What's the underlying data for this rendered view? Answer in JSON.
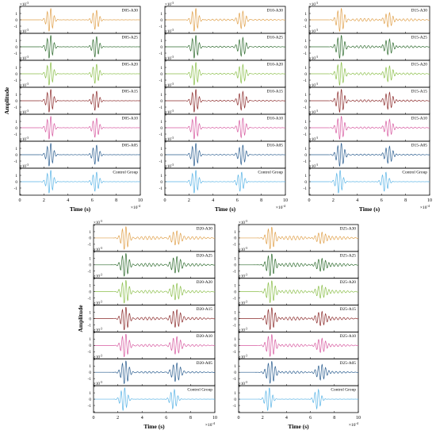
{
  "figure": {
    "ylabel": "Amplitude",
    "xlabel": "Time (s)",
    "x_exponent": "×10",
    "x_exponent_power": "-4",
    "y_exponent": "×10",
    "y_exponent_power": "-3"
  },
  "chart_data": [
    {
      "type": "line",
      "id": "D05",
      "xlim": [
        0,
        10
      ],
      "x_ticks": [
        "0",
        "2",
        "4",
        "6",
        "8",
        "10"
      ],
      "ylim": [
        -2,
        2
      ],
      "y_ticks": [
        "2",
        "1",
        "0",
        "-1",
        "-2"
      ],
      "xlabel": "Time (s)",
      "ylabel": "Amplitude",
      "series": [
        {
          "name": "D05-A30",
          "color": "#e0a04a",
          "packets": [
            {
              "center": 2.5,
              "amp": 1.9,
              "width": 0.35
            },
            {
              "center": 6.3,
              "amp": 1.6,
              "width": 0.35
            }
          ],
          "ripple": 0.03
        },
        {
          "name": "D05-A25",
          "color": "#2e6b2e",
          "packets": [
            {
              "center": 2.5,
              "amp": 1.9,
              "width": 0.35
            },
            {
              "center": 6.3,
              "amp": 1.7,
              "width": 0.35
            }
          ],
          "ripple": 0.03
        },
        {
          "name": "D05-A20",
          "color": "#8bbf4a",
          "packets": [
            {
              "center": 2.5,
              "amp": 1.9,
              "width": 0.35
            },
            {
              "center": 6.3,
              "amp": 1.6,
              "width": 0.35
            }
          ],
          "ripple": 0.03
        },
        {
          "name": "D05-A15",
          "color": "#8b2a2a",
          "packets": [
            {
              "center": 2.5,
              "amp": 1.9,
              "width": 0.35
            },
            {
              "center": 6.3,
              "amp": 1.6,
              "width": 0.35
            }
          ],
          "ripple": 0.03
        },
        {
          "name": "D05-A10",
          "color": "#d75aa0",
          "packets": [
            {
              "center": 2.5,
              "amp": 1.9,
              "width": 0.35
            },
            {
              "center": 6.3,
              "amp": 1.6,
              "width": 0.35
            }
          ],
          "ripple": 0.03
        },
        {
          "name": "D05-A05",
          "color": "#2a5d8f",
          "packets": [
            {
              "center": 2.5,
              "amp": 1.9,
              "width": 0.35
            },
            {
              "center": 6.3,
              "amp": 1.6,
              "width": 0.35
            }
          ],
          "ripple": 0.03
        },
        {
          "name": "Control Group",
          "color": "#5ab4e6",
          "packets": [
            {
              "center": 2.5,
              "amp": 1.9,
              "width": 0.35
            },
            {
              "center": 6.3,
              "amp": 1.6,
              "width": 0.35
            }
          ],
          "ripple": 0.03
        }
      ]
    },
    {
      "type": "line",
      "id": "D10",
      "xlim": [
        0,
        10
      ],
      "x_ticks": [
        "0",
        "2",
        "4",
        "6",
        "8",
        "10"
      ],
      "ylim": [
        -2,
        2
      ],
      "y_ticks": [
        "2",
        "1",
        "0",
        "-1",
        "-2"
      ],
      "xlabel": "Time (s)",
      "ylabel": "",
      "series": [
        {
          "name": "D10-A30",
          "color": "#e0a04a",
          "packets": [
            {
              "center": 2.5,
              "amp": 1.9,
              "width": 0.35
            },
            {
              "center": 6.4,
              "amp": 1.4,
              "width": 0.4
            }
          ],
          "ripple": 0.15
        },
        {
          "name": "D10-A25",
          "color": "#2e6b2e",
          "packets": [
            {
              "center": 2.5,
              "amp": 1.9,
              "width": 0.35
            },
            {
              "center": 6.4,
              "amp": 1.5,
              "width": 0.4
            }
          ],
          "ripple": 0.12
        },
        {
          "name": "D10-A20",
          "color": "#8bbf4a",
          "packets": [
            {
              "center": 2.5,
              "amp": 1.9,
              "width": 0.35
            },
            {
              "center": 6.4,
              "amp": 1.5,
              "width": 0.4
            }
          ],
          "ripple": 0.1
        },
        {
          "name": "D10-A15",
          "color": "#8b2a2a",
          "packets": [
            {
              "center": 2.5,
              "amp": 1.9,
              "width": 0.35
            },
            {
              "center": 6.4,
              "amp": 1.5,
              "width": 0.4
            }
          ],
          "ripple": 0.1
        },
        {
          "name": "D10-A10",
          "color": "#d75aa0",
          "packets": [
            {
              "center": 2.5,
              "amp": 1.9,
              "width": 0.35
            },
            {
              "center": 6.4,
              "amp": 1.6,
              "width": 0.38
            }
          ],
          "ripple": 0.08
        },
        {
          "name": "D10-A05",
          "color": "#2a5d8f",
          "packets": [
            {
              "center": 2.5,
              "amp": 1.9,
              "width": 0.35
            },
            {
              "center": 6.4,
              "amp": 1.6,
              "width": 0.37
            }
          ],
          "ripple": 0.06
        },
        {
          "name": "Control Group",
          "color": "#5ab4e6",
          "packets": [
            {
              "center": 2.5,
              "amp": 1.9,
              "width": 0.35
            },
            {
              "center": 6.3,
              "amp": 1.6,
              "width": 0.35
            }
          ],
          "ripple": 0.03
        }
      ]
    },
    {
      "type": "line",
      "id": "D15",
      "xlim": [
        0,
        10
      ],
      "x_ticks": [
        "0",
        "2",
        "4",
        "6",
        "8",
        "10"
      ],
      "ylim": [
        -2,
        2
      ],
      "y_ticks": [
        "2",
        "1",
        "0",
        "-1",
        "-2"
      ],
      "xlabel": "Time (s)",
      "ylabel": "",
      "series": [
        {
          "name": "D15-A30",
          "color": "#e0a04a",
          "packets": [
            {
              "center": 2.6,
              "amp": 1.9,
              "width": 0.4
            },
            {
              "center": 6.6,
              "amp": 1.2,
              "width": 0.45
            }
          ],
          "ripple": 0.25
        },
        {
          "name": "D15-A25",
          "color": "#2e6b2e",
          "packets": [
            {
              "center": 2.6,
              "amp": 1.9,
              "width": 0.4
            },
            {
              "center": 6.6,
              "amp": 1.3,
              "width": 0.45
            }
          ],
          "ripple": 0.22
        },
        {
          "name": "D15-A20",
          "color": "#8bbf4a",
          "packets": [
            {
              "center": 2.6,
              "amp": 1.9,
              "width": 0.4
            },
            {
              "center": 6.6,
              "amp": 1.3,
              "width": 0.45
            }
          ],
          "ripple": 0.2
        },
        {
          "name": "D15-A15",
          "color": "#8b2a2a",
          "packets": [
            {
              "center": 2.6,
              "amp": 1.9,
              "width": 0.4
            },
            {
              "center": 6.6,
              "amp": 1.4,
              "width": 0.45
            }
          ],
          "ripple": 0.18
        },
        {
          "name": "D15-A10",
          "color": "#d75aa0",
          "packets": [
            {
              "center": 2.6,
              "amp": 1.9,
              "width": 0.4
            },
            {
              "center": 6.6,
              "amp": 1.4,
              "width": 0.42
            }
          ],
          "ripple": 0.15
        },
        {
          "name": "D15-A05",
          "color": "#2a5d8f",
          "packets": [
            {
              "center": 2.6,
              "amp": 1.9,
              "width": 0.4
            },
            {
              "center": 6.6,
              "amp": 1.4,
              "width": 0.42
            }
          ],
          "ripple": 0.12
        },
        {
          "name": "Control Group",
          "color": "#5ab4e6",
          "packets": [
            {
              "center": 2.5,
              "amp": 1.9,
              "width": 0.35
            },
            {
              "center": 6.3,
              "amp": 1.6,
              "width": 0.35
            }
          ],
          "ripple": 0.03
        }
      ]
    },
    {
      "type": "line",
      "id": "D20",
      "xlim": [
        0,
        10
      ],
      "x_ticks": [
        "0",
        "2",
        "4",
        "6",
        "8",
        "10"
      ],
      "ylim": [
        -2,
        2
      ],
      "y_ticks": [
        "2",
        "1",
        "0",
        "-1",
        "-2"
      ],
      "xlabel": "Time (s)",
      "ylabel": "Amplitude",
      "series": [
        {
          "name": "D20-A30",
          "color": "#e0a04a",
          "packets": [
            {
              "center": 2.6,
              "amp": 1.9,
              "width": 0.4
            },
            {
              "center": 6.8,
              "amp": 1.1,
              "width": 0.5
            }
          ],
          "ripple": 0.3
        },
        {
          "name": "D20-A25",
          "color": "#2e6b2e",
          "packets": [
            {
              "center": 2.6,
              "amp": 1.9,
              "width": 0.4
            },
            {
              "center": 6.8,
              "amp": 1.3,
              "width": 0.5
            }
          ],
          "ripple": 0.28
        },
        {
          "name": "D20-A20",
          "color": "#8bbf4a",
          "packets": [
            {
              "center": 2.6,
              "amp": 1.9,
              "width": 0.4
            },
            {
              "center": 6.8,
              "amp": 1.3,
              "width": 0.5
            }
          ],
          "ripple": 0.25
        },
        {
          "name": "D20-A15",
          "color": "#8b2a2a",
          "packets": [
            {
              "center": 2.6,
              "amp": 1.9,
              "width": 0.4
            },
            {
              "center": 6.8,
              "amp": 1.4,
              "width": 0.5
            }
          ],
          "ripple": 0.25
        },
        {
          "name": "D20-A10",
          "color": "#d75aa0",
          "packets": [
            {
              "center": 2.6,
              "amp": 1.9,
              "width": 0.4
            },
            {
              "center": 6.8,
              "amp": 1.4,
              "width": 0.48
            }
          ],
          "ripple": 0.2
        },
        {
          "name": "D20-A05",
          "color": "#2a5d8f",
          "packets": [
            {
              "center": 2.6,
              "amp": 1.9,
              "width": 0.4
            },
            {
              "center": 6.8,
              "amp": 1.5,
              "width": 0.45
            }
          ],
          "ripple": 0.15
        },
        {
          "name": "Control Group",
          "color": "#5ab4e6",
          "packets": [
            {
              "center": 2.5,
              "amp": 1.9,
              "width": 0.35
            },
            {
              "center": 6.6,
              "amp": 1.6,
              "width": 0.35
            }
          ],
          "ripple": 0.03
        }
      ]
    },
    {
      "type": "line",
      "id": "D25",
      "xlim": [
        0,
        10
      ],
      "x_ticks": [
        "0",
        "2",
        "4",
        "6",
        "8",
        "10"
      ],
      "ylim": [
        -2,
        2
      ],
      "y_ticks": [
        "2",
        "1",
        "0",
        "-1",
        "-2"
      ],
      "xlabel": "Time (s)",
      "ylabel": "",
      "series": [
        {
          "name": "D25-A30",
          "color": "#e0a04a",
          "packets": [
            {
              "center": 2.7,
              "amp": 1.8,
              "width": 0.45
            },
            {
              "center": 6.9,
              "amp": 1.0,
              "width": 0.55
            }
          ],
          "ripple": 0.35
        },
        {
          "name": "D25-A25",
          "color": "#2e6b2e",
          "packets": [
            {
              "center": 2.7,
              "amp": 1.8,
              "width": 0.45
            },
            {
              "center": 6.9,
              "amp": 1.1,
              "width": 0.55
            }
          ],
          "ripple": 0.33
        },
        {
          "name": "D25-A20",
          "color": "#8bbf4a",
          "packets": [
            {
              "center": 2.7,
              "amp": 1.8,
              "width": 0.45
            },
            {
              "center": 6.9,
              "amp": 1.1,
              "width": 0.55
            }
          ],
          "ripple": 0.3
        },
        {
          "name": "D25-A15",
          "color": "#8b2a2a",
          "packets": [
            {
              "center": 2.7,
              "amp": 1.8,
              "width": 0.45
            },
            {
              "center": 6.9,
              "amp": 1.2,
              "width": 0.55
            }
          ],
          "ripple": 0.28
        },
        {
          "name": "D25-A10",
          "color": "#d75aa0",
          "packets": [
            {
              "center": 2.7,
              "amp": 1.8,
              "width": 0.45
            },
            {
              "center": 6.9,
              "amp": 1.2,
              "width": 0.5
            }
          ],
          "ripple": 0.25
        },
        {
          "name": "D25-A05",
          "color": "#2a5d8f",
          "packets": [
            {
              "center": 2.7,
              "amp": 1.8,
              "width": 0.45
            },
            {
              "center": 6.9,
              "amp": 1.3,
              "width": 0.5
            }
          ],
          "ripple": 0.2
        },
        {
          "name": "Control Group",
          "color": "#5ab4e6",
          "packets": [
            {
              "center": 2.5,
              "amp": 1.9,
              "width": 0.35
            },
            {
              "center": 6.6,
              "amp": 1.6,
              "width": 0.35
            }
          ],
          "ripple": 0.03
        }
      ]
    }
  ]
}
